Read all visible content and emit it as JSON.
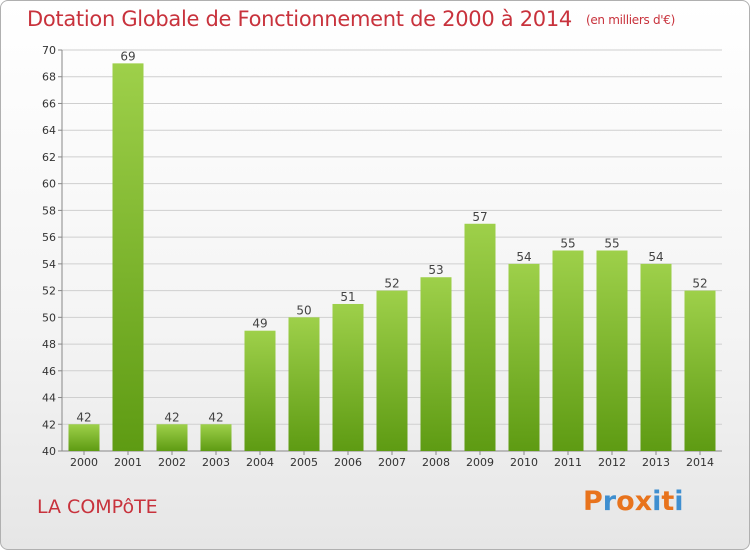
{
  "header": {
    "title": "Dotation Globale de Fonctionnement de 2000 à 2014",
    "unit": "(en milliers d'€)"
  },
  "footer": {
    "commune": "LA COMPôTE",
    "logo": {
      "text": "Proxiti",
      "colors": [
        "#e8731c",
        "#3f8fd0",
        "#e8731c",
        "#e8731c",
        "#3f8fd0",
        "#e8731c",
        "#3f8fd0"
      ]
    }
  },
  "colors": {
    "bar_top": "#9ed04a",
    "bar_bottom": "#5e9b13",
    "title": "#c8323c",
    "grid": "#cfcfcf"
  },
  "chart_data": {
    "type": "bar",
    "title": "Dotation Globale de Fonctionnement de 2000 à 2014",
    "subtitle": "(en milliers d'€)",
    "categories": [
      "2000",
      "2001",
      "2002",
      "2003",
      "2004",
      "2005",
      "2006",
      "2007",
      "2008",
      "2009",
      "2010",
      "2011",
      "2012",
      "2013",
      "2014"
    ],
    "values": [
      42,
      69,
      42,
      42,
      49,
      50,
      51,
      52,
      53,
      57,
      54,
      55,
      55,
      54,
      52
    ],
    "ylim": [
      40,
      70
    ],
    "yticks": [
      40,
      42,
      44,
      46,
      48,
      50,
      52,
      54,
      56,
      58,
      60,
      62,
      64,
      66,
      68,
      70
    ],
    "grid": true,
    "xlabel": "",
    "ylabel": ""
  }
}
